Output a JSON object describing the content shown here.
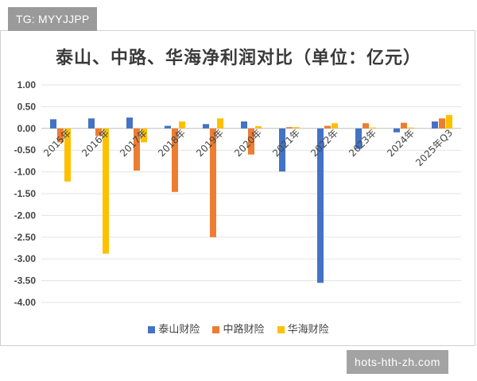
{
  "badge": {
    "text": "TG: MYYJJPP"
  },
  "watermark": {
    "text": "hots-hth-zh.com"
  },
  "colors": {
    "taishan": "#4472C4",
    "zhonglu": "#ED7D31",
    "huahai": "#FFC000"
  },
  "chart_data": {
    "type": "bar",
    "title": "泰山、中路、华海净利润对比（单位：亿元）",
    "categories": [
      "2015年",
      "2016年",
      "2017年",
      "2018年",
      "2019年",
      "2020年",
      "2021年",
      "2022年",
      "2023年",
      "2024年",
      "2025年Q3"
    ],
    "series": [
      {
        "name": "泰山财险",
        "color": "#4472C4",
        "values": [
          0.21,
          0.23,
          0.25,
          0.06,
          0.1,
          0.16,
          -0.99,
          -3.55,
          -0.47,
          -0.09,
          0.16
        ]
      },
      {
        "name": "中路财险",
        "color": "#ED7D31",
        "values": [
          -0.32,
          -0.17,
          -0.97,
          -1.46,
          -2.5,
          -0.6,
          0.03,
          0.06,
          0.12,
          0.13,
          0.23
        ]
      },
      {
        "name": "华海财险",
        "color": "#FFC000",
        "values": [
          -1.22,
          -2.88,
          -0.32,
          0.16,
          0.23,
          0.05,
          0.03,
          0.12,
          0.02,
          0.02,
          0.31
        ]
      }
    ],
    "yticks": [
      "1.00",
      "0.50",
      "0.00",
      "-0.50",
      "-1.00",
      "-1.50",
      "-2.00",
      "-2.50",
      "-3.00",
      "-3.50",
      "-4.00"
    ],
    "ylim": [
      -4.0,
      1.0
    ],
    "grid": true,
    "legend": "bottom"
  }
}
